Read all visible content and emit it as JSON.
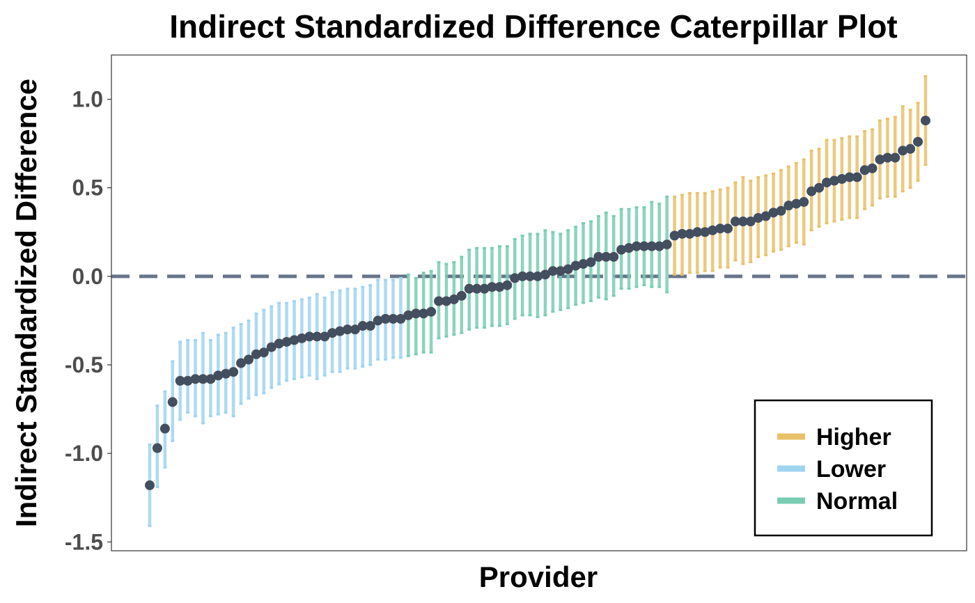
{
  "chart_data": {
    "type": "scatter",
    "title": "Indirect Standardized Difference Caterpillar Plot",
    "xlabel": "Provider",
    "ylabel": "Indirect Standardized Difference",
    "ylim": [
      -1.55,
      1.25
    ],
    "y_ticks": [
      "1.0",
      "0.5",
      "0.0",
      "-0.5",
      "-1.0",
      "-1.5"
    ],
    "y_tick_values": [
      1.0,
      0.5,
      0.0,
      -0.5,
      -1.0,
      -1.5
    ],
    "reference_line": 0.0,
    "grid": false,
    "legend_position": "bottom-right",
    "point_color": "#434e5e",
    "reference_line_color": "#66758a",
    "categories_colors": {
      "Higher": "#e8c168",
      "Lower": "#9fd4f0",
      "Normal": "#78ccb2"
    },
    "legend": [
      "Higher",
      "Lower",
      "Normal"
    ],
    "series": [
      {
        "name": "Lower",
        "color": "#9fd4f0",
        "points": [
          {
            "x": 1,
            "y": -1.18,
            "lo": -1.41,
            "hi": -0.95
          },
          {
            "x": 2,
            "y": -0.97,
            "lo": -1.19,
            "hi": -0.73
          },
          {
            "x": 3,
            "y": -0.86,
            "lo": -1.08,
            "hi": -0.65
          },
          {
            "x": 4,
            "y": -0.71,
            "lo": -0.93,
            "hi": -0.48
          },
          {
            "x": 5,
            "y": -0.59,
            "lo": -0.81,
            "hi": -0.37
          },
          {
            "x": 6,
            "y": -0.59,
            "lo": -0.77,
            "hi": -0.36
          },
          {
            "x": 7,
            "y": -0.58,
            "lo": -0.79,
            "hi": -0.36
          },
          {
            "x": 8,
            "y": -0.58,
            "lo": -0.83,
            "hi": -0.32
          },
          {
            "x": 9,
            "y": -0.58,
            "lo": -0.79,
            "hi": -0.36
          },
          {
            "x": 10,
            "y": -0.56,
            "lo": -0.78,
            "hi": -0.33
          },
          {
            "x": 11,
            "y": -0.55,
            "lo": -0.77,
            "hi": -0.32
          },
          {
            "x": 12,
            "y": -0.54,
            "lo": -0.79,
            "hi": -0.29
          },
          {
            "x": 13,
            "y": -0.49,
            "lo": -0.72,
            "hi": -0.27
          },
          {
            "x": 14,
            "y": -0.47,
            "lo": -0.69,
            "hi": -0.25
          },
          {
            "x": 15,
            "y": -0.44,
            "lo": -0.67,
            "hi": -0.21
          },
          {
            "x": 16,
            "y": -0.43,
            "lo": -0.66,
            "hi": -0.19
          },
          {
            "x": 17,
            "y": -0.4,
            "lo": -0.63,
            "hi": -0.17
          },
          {
            "x": 18,
            "y": -0.38,
            "lo": -0.61,
            "hi": -0.15
          },
          {
            "x": 19,
            "y": -0.37,
            "lo": -0.59,
            "hi": -0.15
          },
          {
            "x": 20,
            "y": -0.36,
            "lo": -0.58,
            "hi": -0.14
          },
          {
            "x": 21,
            "y": -0.35,
            "lo": -0.57,
            "hi": -0.13
          },
          {
            "x": 22,
            "y": -0.34,
            "lo": -0.56,
            "hi": -0.12
          },
          {
            "x": 23,
            "y": -0.34,
            "lo": -0.58,
            "hi": -0.1
          },
          {
            "x": 24,
            "y": -0.34,
            "lo": -0.56,
            "hi": -0.12
          },
          {
            "x": 25,
            "y": -0.32,
            "lo": -0.54,
            "hi": -0.09
          },
          {
            "x": 26,
            "y": -0.31,
            "lo": -0.54,
            "hi": -0.08
          },
          {
            "x": 27,
            "y": -0.3,
            "lo": -0.52,
            "hi": -0.07
          },
          {
            "x": 28,
            "y": -0.3,
            "lo": -0.52,
            "hi": -0.07
          },
          {
            "x": 29,
            "y": -0.28,
            "lo": -0.51,
            "hi": -0.06
          },
          {
            "x": 30,
            "y": -0.28,
            "lo": -0.5,
            "hi": -0.05
          },
          {
            "x": 31,
            "y": -0.25,
            "lo": -0.47,
            "hi": -0.02
          },
          {
            "x": 32,
            "y": -0.24,
            "lo": -0.47,
            "hi": -0.02
          },
          {
            "x": 33,
            "y": -0.24,
            "lo": -0.46,
            "hi": -0.02
          },
          {
            "x": 34,
            "y": -0.24,
            "lo": -0.46,
            "hi": -0.01
          }
        ]
      },
      {
        "name": "Normal",
        "color": "#78ccb2",
        "points": [
          {
            "x": 35,
            "y": -0.22,
            "lo": -0.45,
            "hi": 0.01
          },
          {
            "x": 36,
            "y": -0.21,
            "lo": -0.44,
            "hi": -0.01
          },
          {
            "x": 37,
            "y": -0.21,
            "lo": -0.43,
            "hi": 0.02
          },
          {
            "x": 38,
            "y": -0.2,
            "lo": -0.43,
            "hi": 0.03
          },
          {
            "x": 39,
            "y": -0.14,
            "lo": -0.35,
            "hi": 0.08
          },
          {
            "x": 40,
            "y": -0.14,
            "lo": -0.34,
            "hi": 0.07
          },
          {
            "x": 41,
            "y": -0.13,
            "lo": -0.33,
            "hi": 0.08
          },
          {
            "x": 42,
            "y": -0.11,
            "lo": -0.32,
            "hi": 0.11
          },
          {
            "x": 43,
            "y": -0.07,
            "lo": -0.3,
            "hi": 0.15
          },
          {
            "x": 44,
            "y": -0.07,
            "lo": -0.29,
            "hi": 0.16
          },
          {
            "x": 45,
            "y": -0.07,
            "lo": -0.29,
            "hi": 0.16
          },
          {
            "x": 46,
            "y": -0.06,
            "lo": -0.28,
            "hi": 0.16
          },
          {
            "x": 47,
            "y": -0.06,
            "lo": -0.28,
            "hi": 0.17
          },
          {
            "x": 48,
            "y": -0.05,
            "lo": -0.27,
            "hi": 0.17
          },
          {
            "x": 49,
            "y": -0.01,
            "lo": -0.24,
            "hi": 0.21
          },
          {
            "x": 50,
            "y": 0.0,
            "lo": -0.22,
            "hi": 0.23
          },
          {
            "x": 51,
            "y": 0.0,
            "lo": -0.22,
            "hi": 0.24
          },
          {
            "x": 52,
            "y": 0.0,
            "lo": -0.23,
            "hi": 0.24
          },
          {
            "x": 53,
            "y": 0.01,
            "lo": -0.22,
            "hi": 0.26
          },
          {
            "x": 54,
            "y": 0.03,
            "lo": -0.2,
            "hi": 0.25
          },
          {
            "x": 55,
            "y": 0.03,
            "lo": -0.19,
            "hi": 0.24
          },
          {
            "x": 56,
            "y": 0.04,
            "lo": -0.18,
            "hi": 0.26
          },
          {
            "x": 57,
            "y": 0.06,
            "lo": -0.16,
            "hi": 0.28
          },
          {
            "x": 58,
            "y": 0.07,
            "lo": -0.15,
            "hi": 0.3
          },
          {
            "x": 59,
            "y": 0.08,
            "lo": -0.14,
            "hi": 0.31
          },
          {
            "x": 60,
            "y": 0.11,
            "lo": -0.12,
            "hi": 0.34
          },
          {
            "x": 61,
            "y": 0.11,
            "lo": -0.13,
            "hi": 0.36
          },
          {
            "x": 62,
            "y": 0.11,
            "lo": -0.11,
            "hi": 0.34
          },
          {
            "x": 63,
            "y": 0.15,
            "lo": -0.07,
            "hi": 0.38
          },
          {
            "x": 64,
            "y": 0.16,
            "lo": -0.07,
            "hi": 0.38
          },
          {
            "x": 65,
            "y": 0.17,
            "lo": -0.06,
            "hi": 0.39
          },
          {
            "x": 66,
            "y": 0.17,
            "lo": -0.05,
            "hi": 0.39
          },
          {
            "x": 67,
            "y": 0.17,
            "lo": -0.06,
            "hi": 0.42
          },
          {
            "x": 68,
            "y": 0.17,
            "lo": -0.06,
            "hi": 0.41
          },
          {
            "x": 69,
            "y": 0.18,
            "lo": -0.09,
            "hi": 0.45
          }
        ]
      },
      {
        "name": "Higher",
        "color": "#e8c168",
        "points": [
          {
            "x": 70,
            "y": 0.23,
            "lo": 0.01,
            "hi": 0.45
          },
          {
            "x": 71,
            "y": 0.24,
            "lo": 0.01,
            "hi": 0.46
          },
          {
            "x": 72,
            "y": 0.24,
            "lo": 0.02,
            "hi": 0.47
          },
          {
            "x": 73,
            "y": 0.25,
            "lo": 0.02,
            "hi": 0.47
          },
          {
            "x": 74,
            "y": 0.25,
            "lo": 0.03,
            "hi": 0.47
          },
          {
            "x": 75,
            "y": 0.26,
            "lo": 0.03,
            "hi": 0.48
          },
          {
            "x": 76,
            "y": 0.27,
            "lo": 0.05,
            "hi": 0.49
          },
          {
            "x": 77,
            "y": 0.27,
            "lo": 0.05,
            "hi": 0.5
          },
          {
            "x": 78,
            "y": 0.31,
            "lo": 0.09,
            "hi": 0.53
          },
          {
            "x": 79,
            "y": 0.31,
            "lo": 0.07,
            "hi": 0.56
          },
          {
            "x": 80,
            "y": 0.31,
            "lo": 0.08,
            "hi": 0.54
          },
          {
            "x": 81,
            "y": 0.33,
            "lo": 0.11,
            "hi": 0.56
          },
          {
            "x": 82,
            "y": 0.34,
            "lo": 0.12,
            "hi": 0.57
          },
          {
            "x": 83,
            "y": 0.36,
            "lo": 0.14,
            "hi": 0.58
          },
          {
            "x": 84,
            "y": 0.37,
            "lo": 0.15,
            "hi": 0.6
          },
          {
            "x": 85,
            "y": 0.4,
            "lo": 0.17,
            "hi": 0.62
          },
          {
            "x": 86,
            "y": 0.41,
            "lo": 0.19,
            "hi": 0.64
          },
          {
            "x": 87,
            "y": 0.42,
            "lo": 0.18,
            "hi": 0.66
          },
          {
            "x": 88,
            "y": 0.48,
            "lo": 0.26,
            "hi": 0.71
          },
          {
            "x": 89,
            "y": 0.5,
            "lo": 0.28,
            "hi": 0.72
          },
          {
            "x": 90,
            "y": 0.53,
            "lo": 0.3,
            "hi": 0.77
          },
          {
            "x": 91,
            "y": 0.54,
            "lo": 0.31,
            "hi": 0.77
          },
          {
            "x": 92,
            "y": 0.55,
            "lo": 0.32,
            "hi": 0.78
          },
          {
            "x": 93,
            "y": 0.56,
            "lo": 0.33,
            "hi": 0.79
          },
          {
            "x": 94,
            "y": 0.56,
            "lo": 0.33,
            "hi": 0.79
          },
          {
            "x": 95,
            "y": 0.6,
            "lo": 0.38,
            "hi": 0.82
          },
          {
            "x": 96,
            "y": 0.61,
            "lo": 0.4,
            "hi": 0.83
          },
          {
            "x": 97,
            "y": 0.66,
            "lo": 0.44,
            "hi": 0.88
          },
          {
            "x": 98,
            "y": 0.67,
            "lo": 0.45,
            "hi": 0.89
          },
          {
            "x": 99,
            "y": 0.67,
            "lo": 0.45,
            "hi": 0.9
          },
          {
            "x": 100,
            "y": 0.71,
            "lo": 0.48,
            "hi": 0.96
          },
          {
            "x": 101,
            "y": 0.72,
            "lo": 0.5,
            "hi": 0.94
          },
          {
            "x": 102,
            "y": 0.76,
            "lo": 0.54,
            "hi": 0.98
          },
          {
            "x": 103,
            "y": 0.88,
            "lo": 0.63,
            "hi": 1.13
          }
        ]
      }
    ]
  }
}
